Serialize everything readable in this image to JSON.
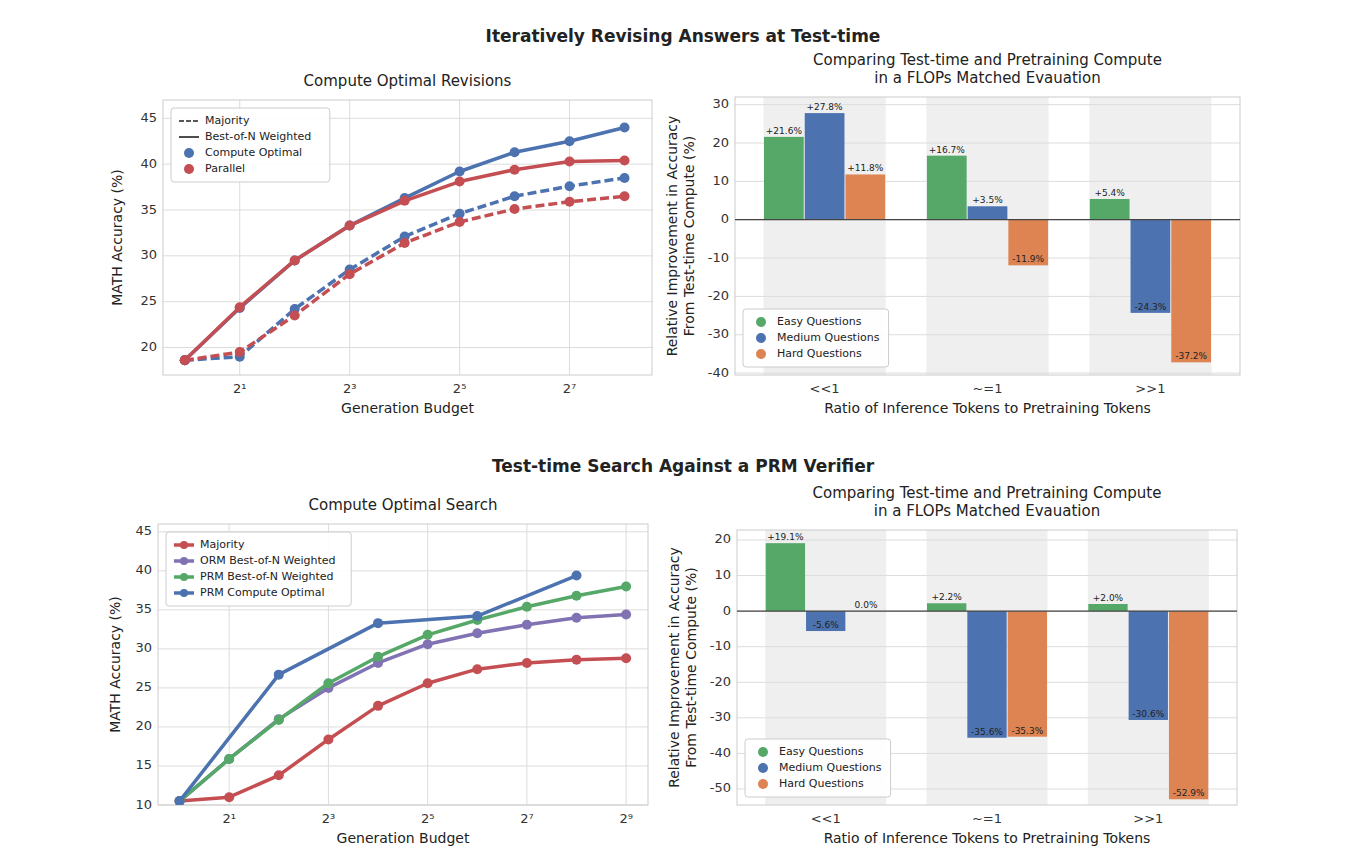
{
  "section_titles": [
    "Iteratively Revising Answers at Test-time",
    "Test-time Search Against a PRM Verifier"
  ],
  "chart_data": [
    {
      "type": "line",
      "title": "Compute Optimal Revisions",
      "x_label": "Generation Budget",
      "y_label": "MATH Accuracy (%)",
      "log": "x",
      "grid": true,
      "legend": "upper left",
      "marker": "circle",
      "x": [
        1,
        2,
        4,
        8,
        16,
        32,
        64,
        128,
        256
      ],
      "xlim": [
        0.76,
        362
      ],
      "xticks": [
        {
          "value": 2,
          "label": "2¹"
        },
        {
          "value": 8,
          "label": "2³"
        },
        {
          "value": 32,
          "label": "2⁵"
        },
        {
          "value": 128,
          "label": "2⁷"
        }
      ],
      "ylim": [
        17,
        47
      ],
      "yticks": [
        20,
        25,
        30,
        35,
        40,
        45
      ],
      "style_legend": [
        {
          "label": "Majority",
          "line_style": "dashed"
        },
        {
          "label": "Best-of-N Weighted",
          "line_style": "solid"
        }
      ],
      "series": [
        {
          "name": "Compute Optimal",
          "color": "#4c72b0",
          "line_style": "solid",
          "values": [
            18.6,
            24.3,
            29.5,
            33.3,
            36.3,
            39.2,
            41.3,
            42.5,
            44.0
          ]
        },
        {
          "name": "Parallel",
          "color": "#c44e52",
          "line_style": "solid",
          "values": [
            18.6,
            24.4,
            29.5,
            33.3,
            36.0,
            38.1,
            39.4,
            40.3,
            40.4
          ]
        },
        {
          "name": "Compute Optimal",
          "color": "#4c72b0",
          "line_style": "dashed",
          "values": [
            18.6,
            19.0,
            24.2,
            28.5,
            32.1,
            34.6,
            36.5,
            37.6,
            38.5
          ]
        },
        {
          "name": "Parallel",
          "color": "#c44e52",
          "line_style": "dashed",
          "values": [
            18.6,
            19.5,
            23.5,
            28.0,
            31.4,
            33.7,
            35.1,
            35.9,
            36.5
          ]
        }
      ]
    },
    {
      "type": "bar",
      "title": "Comparing Test-time and Pretraining Compute\nin a FLOPs Matched Evauation",
      "x_label": "Ratio of Inference Tokens to Pretraining Tokens",
      "y_label": "Relative Improvement in Accuracy\nFrom Test-time Compute (%)",
      "categories": [
        "<<1",
        "~=1",
        ">>1"
      ],
      "grid": true,
      "legend": "lower left",
      "data_labels": true,
      "ylim": [
        -40.5,
        32
      ],
      "yticks": [
        -40,
        -30,
        -20,
        -10,
        0,
        10,
        20,
        30
      ],
      "series": [
        {
          "name": "Easy Questions",
          "color": "#55a868",
          "values": [
            21.6,
            16.7,
            5.4
          ],
          "value_labels": [
            "+21.6%",
            "+16.7%",
            "+5.4%"
          ]
        },
        {
          "name": "Medium Questions",
          "color": "#4c72b0",
          "values": [
            27.8,
            3.5,
            -24.3
          ],
          "value_labels": [
            "+27.8%",
            "+3.5%",
            "-24.3%"
          ]
        },
        {
          "name": "Hard Questions",
          "color": "#dd8452",
          "values": [
            11.8,
            -11.9,
            -37.2
          ],
          "value_labels": [
            "+11.8%",
            "-11.9%",
            "-37.2%"
          ]
        }
      ]
    },
    {
      "type": "line",
      "title": "Compute Optimal Search",
      "x_label": "Generation Budget",
      "y_label": "MATH Accuracy (%)",
      "log": "x",
      "grid": true,
      "legend": "upper left",
      "marker": "circle",
      "xlim": [
        0.74,
        695
      ],
      "xticks": [
        {
          "value": 2,
          "label": "2¹"
        },
        {
          "value": 8,
          "label": "2³"
        },
        {
          "value": 32,
          "label": "2⁵"
        },
        {
          "value": 128,
          "label": "2⁷"
        },
        {
          "value": 512,
          "label": "2⁹"
        }
      ],
      "ylim": [
        10,
        46
      ],
      "yticks": [
        10,
        15,
        20,
        25,
        30,
        35,
        40,
        45
      ],
      "series": [
        {
          "name": "Majority",
          "color": "#c44e52",
          "x": [
            1,
            2,
            4,
            8,
            16,
            32,
            64,
            128,
            256,
            512
          ],
          "values": [
            10.5,
            11.0,
            13.8,
            18.4,
            22.7,
            25.6,
            27.4,
            28.2,
            28.6,
            28.8
          ]
        },
        {
          "name": "ORM Best-of-N Weighted",
          "color": "#8172b3",
          "x": [
            1,
            2,
            4,
            8,
            16,
            32,
            64,
            128,
            256,
            512
          ],
          "values": [
            10.5,
            15.9,
            21.0,
            25.0,
            28.2,
            30.6,
            32.0,
            33.1,
            34.0,
            34.4
          ]
        },
        {
          "name": "PRM Best-of-N Weighted",
          "color": "#55a868",
          "x": [
            1,
            2,
            4,
            8,
            16,
            32,
            64,
            128,
            256,
            512
          ],
          "values": [
            10.5,
            15.9,
            20.9,
            25.6,
            29.0,
            31.8,
            33.7,
            35.4,
            36.8,
            38.0
          ]
        },
        {
          "name": "PRM Compute Optimal",
          "color": "#4c72b0",
          "x": [
            1,
            4,
            16,
            64,
            256
          ],
          "values": [
            10.5,
            26.7,
            33.3,
            34.2,
            39.4
          ]
        }
      ]
    },
    {
      "type": "bar",
      "title": "Comparing Test-time and Pretraining Compute\nin a FLOPs Matched Evauation",
      "x_label": "Ratio of Inference Tokens to Pretraining Tokens",
      "y_label": "Relative Improvement in Accuracy\nFrom Test-time Compute (%)",
      "categories": [
        "<<1",
        "~=1",
        ">>1"
      ],
      "grid": true,
      "legend": "lower left",
      "data_labels": true,
      "ylim": [
        -54.5,
        22.8
      ],
      "yticks": [
        -50,
        -40,
        -30,
        -20,
        -10,
        0,
        10,
        20
      ],
      "series": [
        {
          "name": "Easy Questions",
          "color": "#55a868",
          "values": [
            19.1,
            2.2,
            2.0
          ],
          "value_labels": [
            "+19.1%",
            "+2.2%",
            "+2.0%"
          ]
        },
        {
          "name": "Medium Questions",
          "color": "#4c72b0",
          "values": [
            -5.6,
            -35.6,
            -30.6
          ],
          "value_labels": [
            "-5.6%",
            "-35.6%",
            "-30.6%"
          ]
        },
        {
          "name": "Hard Questions",
          "color": "#dd8452",
          "values": [
            0.0,
            -35.3,
            -52.9
          ],
          "value_labels": [
            "0.0%",
            "-35.3%",
            "-52.9%"
          ]
        }
      ]
    }
  ]
}
